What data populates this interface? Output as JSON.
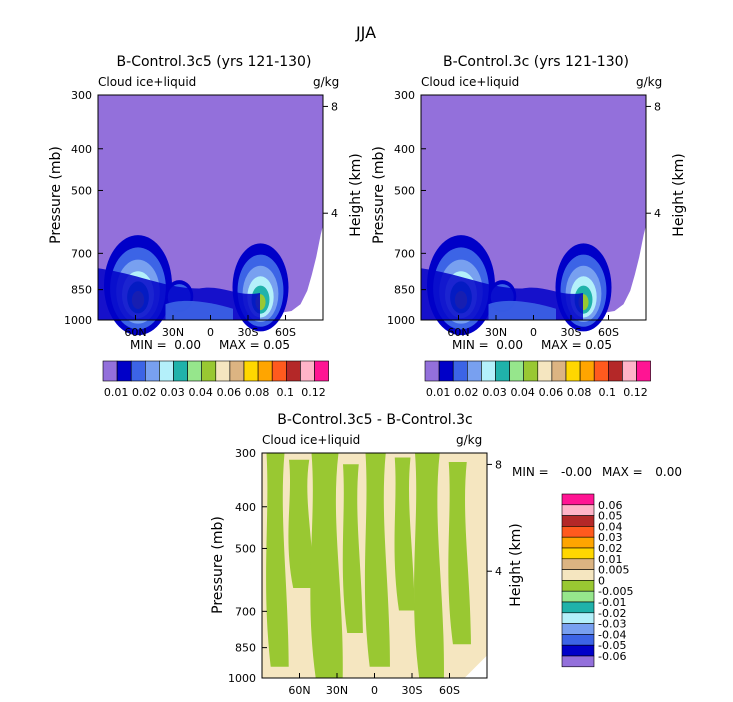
{
  "figure_title": "JJA",
  "colors": {
    "background": "#ffffff",
    "text": "#000000",
    "fill_background": "#9370DB",
    "bottom_green": "#99C832",
    "bottom_beige": "#F5E6C0"
  },
  "chart_data": [
    {
      "type": "contour",
      "title": "B-Control.3c5 (yrs 121-130)",
      "variable": "Cloud ice+liquid",
      "units": "g/kg",
      "ylabel": "Pressure (mb)",
      "y2label": "Height (km)",
      "y_ticks": [
        "300",
        "400",
        "500",
        "700",
        "850",
        "1000"
      ],
      "y_tick_values": [
        300,
        400,
        500,
        700,
        850,
        1000
      ],
      "y2_ticks": [
        "8",
        "4"
      ],
      "y2_tick_values": [
        8,
        4
      ],
      "x_ticks": [
        "60N",
        "30N",
        "0",
        "30S",
        "60S"
      ],
      "x_tick_values": [
        60,
        30,
        0,
        -30,
        -60
      ],
      "xlim": [
        90,
        -90
      ],
      "ylim": [
        300,
        1000
      ],
      "min_text": "MIN =",
      "min_value": "0.00",
      "max_text": "MAX =",
      "max_value": "0.05",
      "maxima": [
        {
          "lat": 58,
          "p": 830,
          "peak": 0.05
        },
        {
          "lat": -40,
          "p": 840,
          "peak": 0.05
        },
        {
          "lat": 25,
          "p": 880,
          "peak": 0.01
        }
      ]
    },
    {
      "type": "contour",
      "title": "B-Control.3c (yrs 121-130)",
      "variable": "Cloud ice+liquid",
      "units": "g/kg",
      "ylabel": "Pressure (mb)",
      "y2label": "Height (km)",
      "y_ticks": [
        "300",
        "400",
        "500",
        "700",
        "850",
        "1000"
      ],
      "y_tick_values": [
        300,
        400,
        500,
        700,
        850,
        1000
      ],
      "y2_ticks": [
        "8",
        "4"
      ],
      "y2_tick_values": [
        8,
        4
      ],
      "x_ticks": [
        "60N",
        "30N",
        "0",
        "30S",
        "60S"
      ],
      "x_tick_values": [
        60,
        30,
        0,
        -30,
        -60
      ],
      "xlim": [
        90,
        -90
      ],
      "ylim": [
        300,
        1000
      ],
      "min_text": "MIN =",
      "min_value": "0.00",
      "max_text": "MAX =",
      "max_value": "0.05",
      "maxima": [
        {
          "lat": 58,
          "p": 830,
          "peak": 0.05
        },
        {
          "lat": -40,
          "p": 840,
          "peak": 0.05
        },
        {
          "lat": 25,
          "p": 880,
          "peak": 0.01
        }
      ]
    },
    {
      "type": "contour",
      "title": "B-Control.3c5 - B-Control.3c",
      "variable": "Cloud ice+liquid",
      "units": "g/kg",
      "ylabel": "Pressure (mb)",
      "y2label": "Height (km)",
      "y_ticks": [
        "300",
        "400",
        "500",
        "700",
        "850",
        "1000"
      ],
      "y_tick_values": [
        300,
        400,
        500,
        700,
        850,
        1000
      ],
      "y2_ticks": [
        "8",
        "4"
      ],
      "y2_tick_values": [
        8,
        4
      ],
      "x_ticks": [
        "60N",
        "30N",
        "0",
        "30S",
        "60S"
      ],
      "x_tick_values": [
        60,
        30,
        0,
        -30,
        -60
      ],
      "xlim": [
        90,
        -90
      ],
      "ylim": [
        300,
        1000
      ],
      "min_text": "MIN =",
      "min_value": "-0.00",
      "max_text": "MAX =",
      "max_value": "0.00",
      "value_classes": [
        "-0.005 to 0 (green)",
        "0 to 0.005 (beige)"
      ]
    }
  ],
  "colorbar_absolute": {
    "labels": [
      "0.01",
      "0.02",
      "0.03",
      "0.04",
      "0.06",
      "0.08",
      "0.1",
      "0.12"
    ],
    "colors": [
      "#9370DB",
      "#0000C8",
      "#3C64E6",
      "#78A0F0",
      "#B4F0FA",
      "#20B2AA",
      "#96E68C",
      "#99C832",
      "#F5E6C0",
      "#DCB482",
      "#FFD700",
      "#FFA500",
      "#FF5A1E",
      "#B42828",
      "#FFB4C8",
      "#FF1493"
    ]
  },
  "colorbar_difference": {
    "labels": [
      "0.06",
      "0.05",
      "0.04",
      "0.03",
      "0.02",
      "0.01",
      "0.005",
      "0",
      "-0.005",
      "-0.01",
      "-0.02",
      "-0.03",
      "-0.04",
      "-0.05",
      "-0.06"
    ],
    "colors": [
      "#FF1493",
      "#FFB4C8",
      "#B42828",
      "#FF5A1E",
      "#FFA500",
      "#FFD700",
      "#DCB482",
      "#F5E6C0",
      "#99C832",
      "#96E68C",
      "#20B2AA",
      "#B4F0FA",
      "#78A0F0",
      "#3C64E6",
      "#0000C8",
      "#9370DB"
    ]
  }
}
